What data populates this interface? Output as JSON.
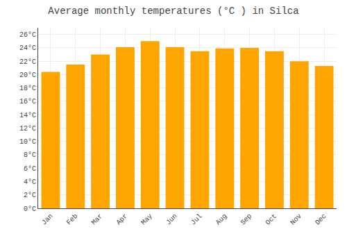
{
  "chart_data": {
    "type": "bar",
    "title": "Average monthly temperatures (°C ) in Silca",
    "categories": [
      "Jan",
      "Feb",
      "Mar",
      "Apr",
      "May",
      "Jun",
      "Jul",
      "Aug",
      "Sep",
      "Oct",
      "Nov",
      "Dec"
    ],
    "values": [
      20.4,
      21.5,
      23.0,
      24.1,
      25.0,
      24.1,
      23.5,
      23.9,
      24.0,
      23.5,
      22.0,
      21.3
    ],
    "color": "#FFA500",
    "ylim": [
      0,
      27
    ],
    "yticks": [
      {
        "value": 0,
        "label": "0°C"
      },
      {
        "value": 2,
        "label": "2°C"
      },
      {
        "value": 4,
        "label": "4°C"
      },
      {
        "value": 6,
        "label": "6°C"
      },
      {
        "value": 8,
        "label": "8°C"
      },
      {
        "value": 10,
        "label": "10°C"
      },
      {
        "value": 12,
        "label": "12°C"
      },
      {
        "value": 14,
        "label": "14°C"
      },
      {
        "value": 16,
        "label": "16°C"
      },
      {
        "value": 18,
        "label": "18°C"
      },
      {
        "value": 20,
        "label": "20°C"
      },
      {
        "value": 22,
        "label": "22°C"
      },
      {
        "value": 24,
        "label": "24°C"
      },
      {
        "value": 26,
        "label": "26°C"
      }
    ],
    "grid": true
  }
}
